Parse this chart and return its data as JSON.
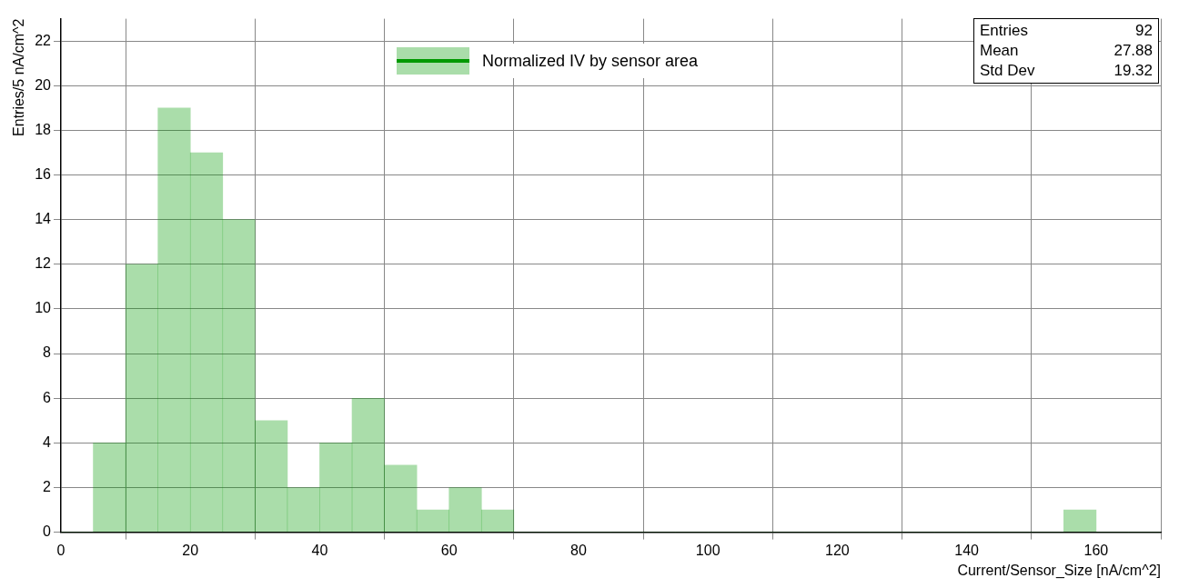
{
  "chart_data": {
    "type": "histogram",
    "xlabel": "Current/Sensor_Size [nA/cm^2]",
    "ylabel": "Entries/5 nA/cm^2",
    "bins": [
      0,
      5,
      10,
      15,
      20,
      25,
      30,
      35,
      40,
      45,
      50,
      55,
      60,
      65,
      70,
      75,
      80,
      85,
      90,
      95,
      100,
      105,
      110,
      115,
      120,
      125,
      130,
      135,
      140,
      145,
      150,
      155,
      160,
      165,
      170
    ],
    "series": [
      {
        "name": "Normalized IV by sensor area",
        "color": "#009900",
        "values": [
          0,
          4,
          12,
          19,
          17,
          14,
          5,
          2,
          4,
          6,
          3,
          1,
          2,
          1,
          0,
          0,
          0,
          0,
          0,
          0,
          0,
          0,
          0,
          0,
          0,
          0,
          0,
          0,
          0,
          0,
          0,
          1,
          0,
          0
        ]
      }
    ],
    "xlim": [
      0,
      170
    ],
    "xticks": [
      0,
      20,
      40,
      60,
      80,
      100,
      120,
      140,
      160
    ],
    "ylim": [
      0,
      23
    ],
    "yticks": [
      0,
      2,
      4,
      6,
      8,
      10,
      12,
      14,
      16,
      18,
      20,
      22
    ],
    "grid": true,
    "legend": "top",
    "annotations": [
      "Entries 92",
      "Mean 27.88",
      "Std Dev 19.32"
    ]
  }
}
